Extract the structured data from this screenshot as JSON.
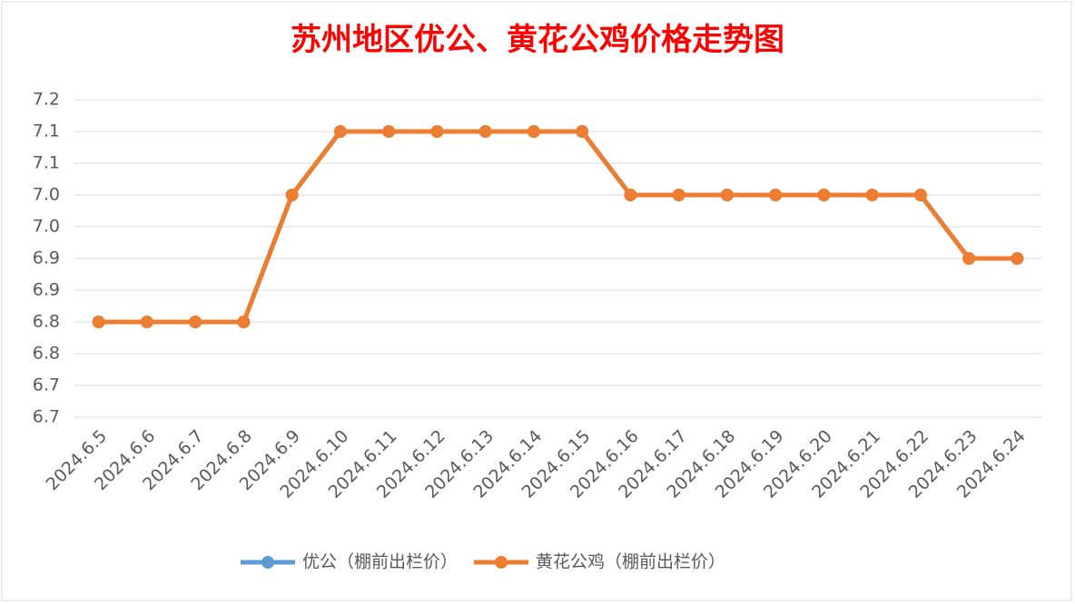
{
  "chart_data": {
    "type": "line",
    "title": "苏州地区优公、黄花公鸡价格走势图",
    "categories": [
      "2024.6.5",
      "2024.6.6",
      "2024.6.7",
      "2024.6.8",
      "2024.6.9",
      "2024.6.10",
      "2024.6.11",
      "2024.6.12",
      "2024.6.13",
      "2024.6.14",
      "2024.6.15",
      "2024.6.16",
      "2024.6.17",
      "2024.6.18",
      "2024.6.19",
      "2024.6.20",
      "2024.6.21",
      "2024.6.22",
      "2024.6.23",
      "2024.6.24"
    ],
    "series": [
      {
        "name": "优公（棚前出栏价）",
        "color": "#5b9bd5",
        "values": [
          6.8,
          6.8,
          6.8,
          6.8,
          7.0,
          7.1,
          7.1,
          7.1,
          7.1,
          7.1,
          7.1,
          7.0,
          7.0,
          7.0,
          7.0,
          7.0,
          7.0,
          7.0,
          6.9,
          6.9
        ]
      },
      {
        "name": "黄花公鸡（棚前出栏价）",
        "color": "#ed7d31",
        "values": [
          6.8,
          6.8,
          6.8,
          6.8,
          7.0,
          7.1,
          7.1,
          7.1,
          7.1,
          7.1,
          7.1,
          7.0,
          7.0,
          7.0,
          7.0,
          7.0,
          7.0,
          7.0,
          6.9,
          6.9
        ]
      }
    ],
    "ylim": [
      6.65,
      7.15
    ],
    "yticks": [
      {
        "value": 6.65,
        "label": "6.7"
      },
      {
        "value": 6.7,
        "label": "6.7"
      },
      {
        "value": 6.75,
        "label": "6.8"
      },
      {
        "value": 6.8,
        "label": "6.8"
      },
      {
        "value": 6.85,
        "label": "6.9"
      },
      {
        "value": 6.9,
        "label": "6.9"
      },
      {
        "value": 6.95,
        "label": "7.0"
      },
      {
        "value": 7.0,
        "label": "7.0"
      },
      {
        "value": 7.05,
        "label": "7.1"
      },
      {
        "value": 7.1,
        "label": "7.1"
      },
      {
        "value": 7.15,
        "label": "7.2"
      }
    ],
    "grid": true,
    "legend": "bottom"
  }
}
